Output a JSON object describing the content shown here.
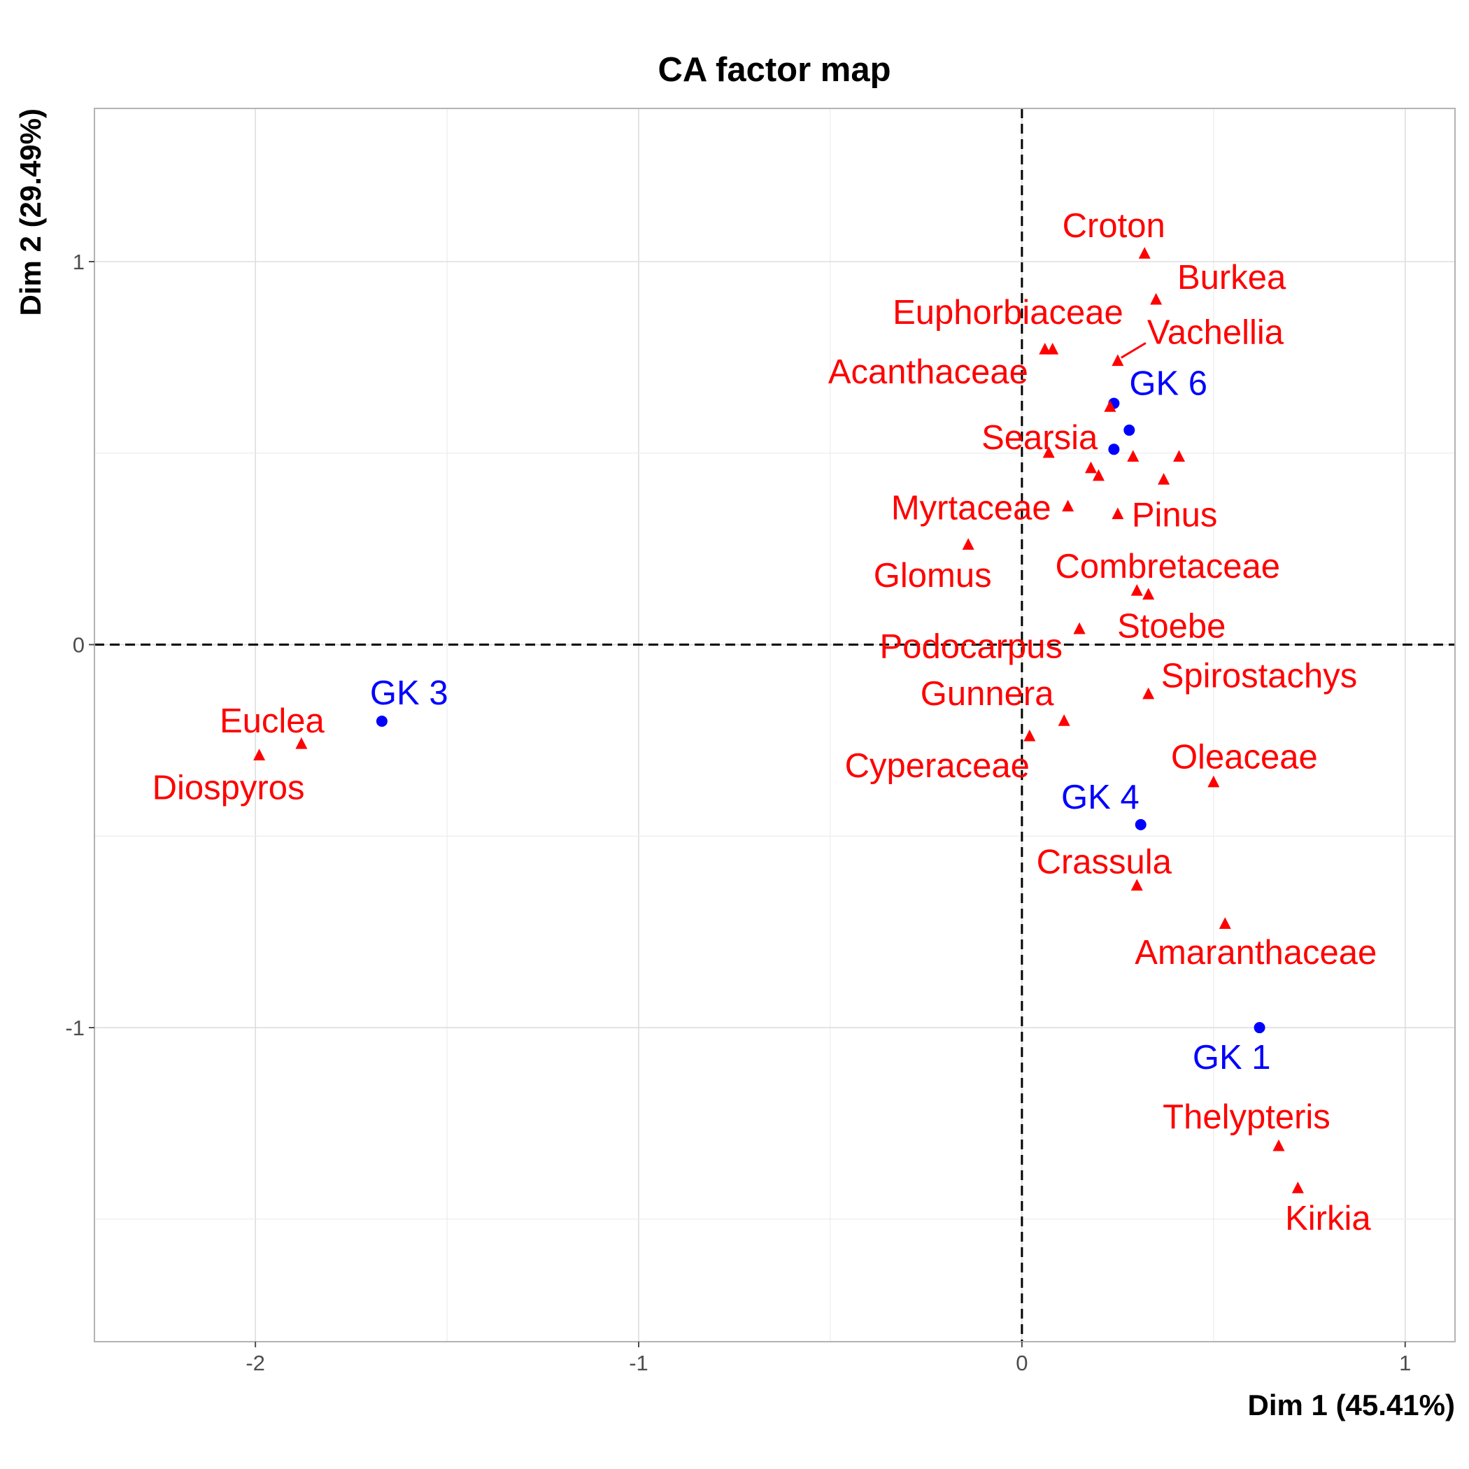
{
  "chart_data": {
    "type": "scatter",
    "title": "CA factor map",
    "xlabel": "Dim 1 (45.41%)",
    "ylabel": "Dim 2 (29.49%)",
    "xlim": [
      -2.42,
      1.13
    ],
    "ylim": [
      -1.82,
      1.4
    ],
    "x_ticks": [
      -2,
      -1,
      0,
      1
    ],
    "y_ticks": [
      -1,
      0,
      1
    ],
    "grid": true,
    "reference_lines": {
      "x": 0,
      "y": 0,
      "style": "dashed"
    },
    "colors": {
      "rows": "#0000ff",
      "columns": "#ff0000"
    },
    "series": [
      {
        "marker": "circle",
        "color": "#0000ff",
        "points": [
          {
            "label": "GK 6",
            "x": 0.24,
            "y": 0.63
          },
          {
            "label": "",
            "x": 0.28,
            "y": 0.56
          },
          {
            "label": "",
            "x": 0.24,
            "y": 0.51
          },
          {
            "label": "GK 3",
            "x": -1.67,
            "y": -0.2
          },
          {
            "label": "GK 4",
            "x": 0.31,
            "y": -0.47
          },
          {
            "label": "GK 1",
            "x": 0.62,
            "y": -1.0
          }
        ]
      },
      {
        "marker": "triangle",
        "color": "#ff0000",
        "points": [
          {
            "label": "Croton",
            "x": 0.32,
            "y": 1.02
          },
          {
            "label": "Burkea",
            "x": 0.35,
            "y": 0.9
          },
          {
            "label": "Euphorbiaceae",
            "x": 0.06,
            "y": 0.77
          },
          {
            "label": "",
            "x": 0.08,
            "y": 0.77
          },
          {
            "label": "Vachellia",
            "x": 0.25,
            "y": 0.74
          },
          {
            "label": "Acanthaceae",
            "x": 0.23,
            "y": 0.62
          },
          {
            "label": "Searsia",
            "x": 0.07,
            "y": 0.5
          },
          {
            "label": "",
            "x": 0.29,
            "y": 0.49
          },
          {
            "label": "",
            "x": 0.41,
            "y": 0.49
          },
          {
            "label": "",
            "x": 0.18,
            "y": 0.46
          },
          {
            "label": "",
            "x": 0.2,
            "y": 0.44
          },
          {
            "label": "",
            "x": 0.37,
            "y": 0.43
          },
          {
            "label": "Myrtaceae",
            "x": 0.12,
            "y": 0.36
          },
          {
            "label": "Pinus",
            "x": 0.25,
            "y": 0.34
          },
          {
            "label": "Glomus",
            "x": -0.14,
            "y": 0.26
          },
          {
            "label": "Combretaceae",
            "x": 0.3,
            "y": 0.14
          },
          {
            "label": "",
            "x": 0.33,
            "y": 0.13
          },
          {
            "label": "Podocarpus",
            "x": 0.15,
            "y": 0.04
          },
          {
            "label": "Stoebe",
            "x": 0.15,
            "y": 0.04
          },
          {
            "label": "Spirostachys",
            "x": 0.33,
            "y": -0.13
          },
          {
            "label": "Gunnera",
            "x": 0.11,
            "y": -0.2
          },
          {
            "label": "Cyperaceae",
            "x": 0.02,
            "y": -0.24
          },
          {
            "label": "Euclea",
            "x": -1.88,
            "y": -0.26
          },
          {
            "label": "Diospyros",
            "x": -1.99,
            "y": -0.29
          },
          {
            "label": "Oleaceae",
            "x": 0.5,
            "y": -0.36
          },
          {
            "label": "Crassula",
            "x": 0.3,
            "y": -0.63
          },
          {
            "label": "Amaranthaceae",
            "x": 0.53,
            "y": -0.73
          },
          {
            "label": "Thelypteris",
            "x": 0.67,
            "y": -1.31
          },
          {
            "label": "Kirkia",
            "x": 0.72,
            "y": -1.42
          }
        ]
      }
    ]
  }
}
